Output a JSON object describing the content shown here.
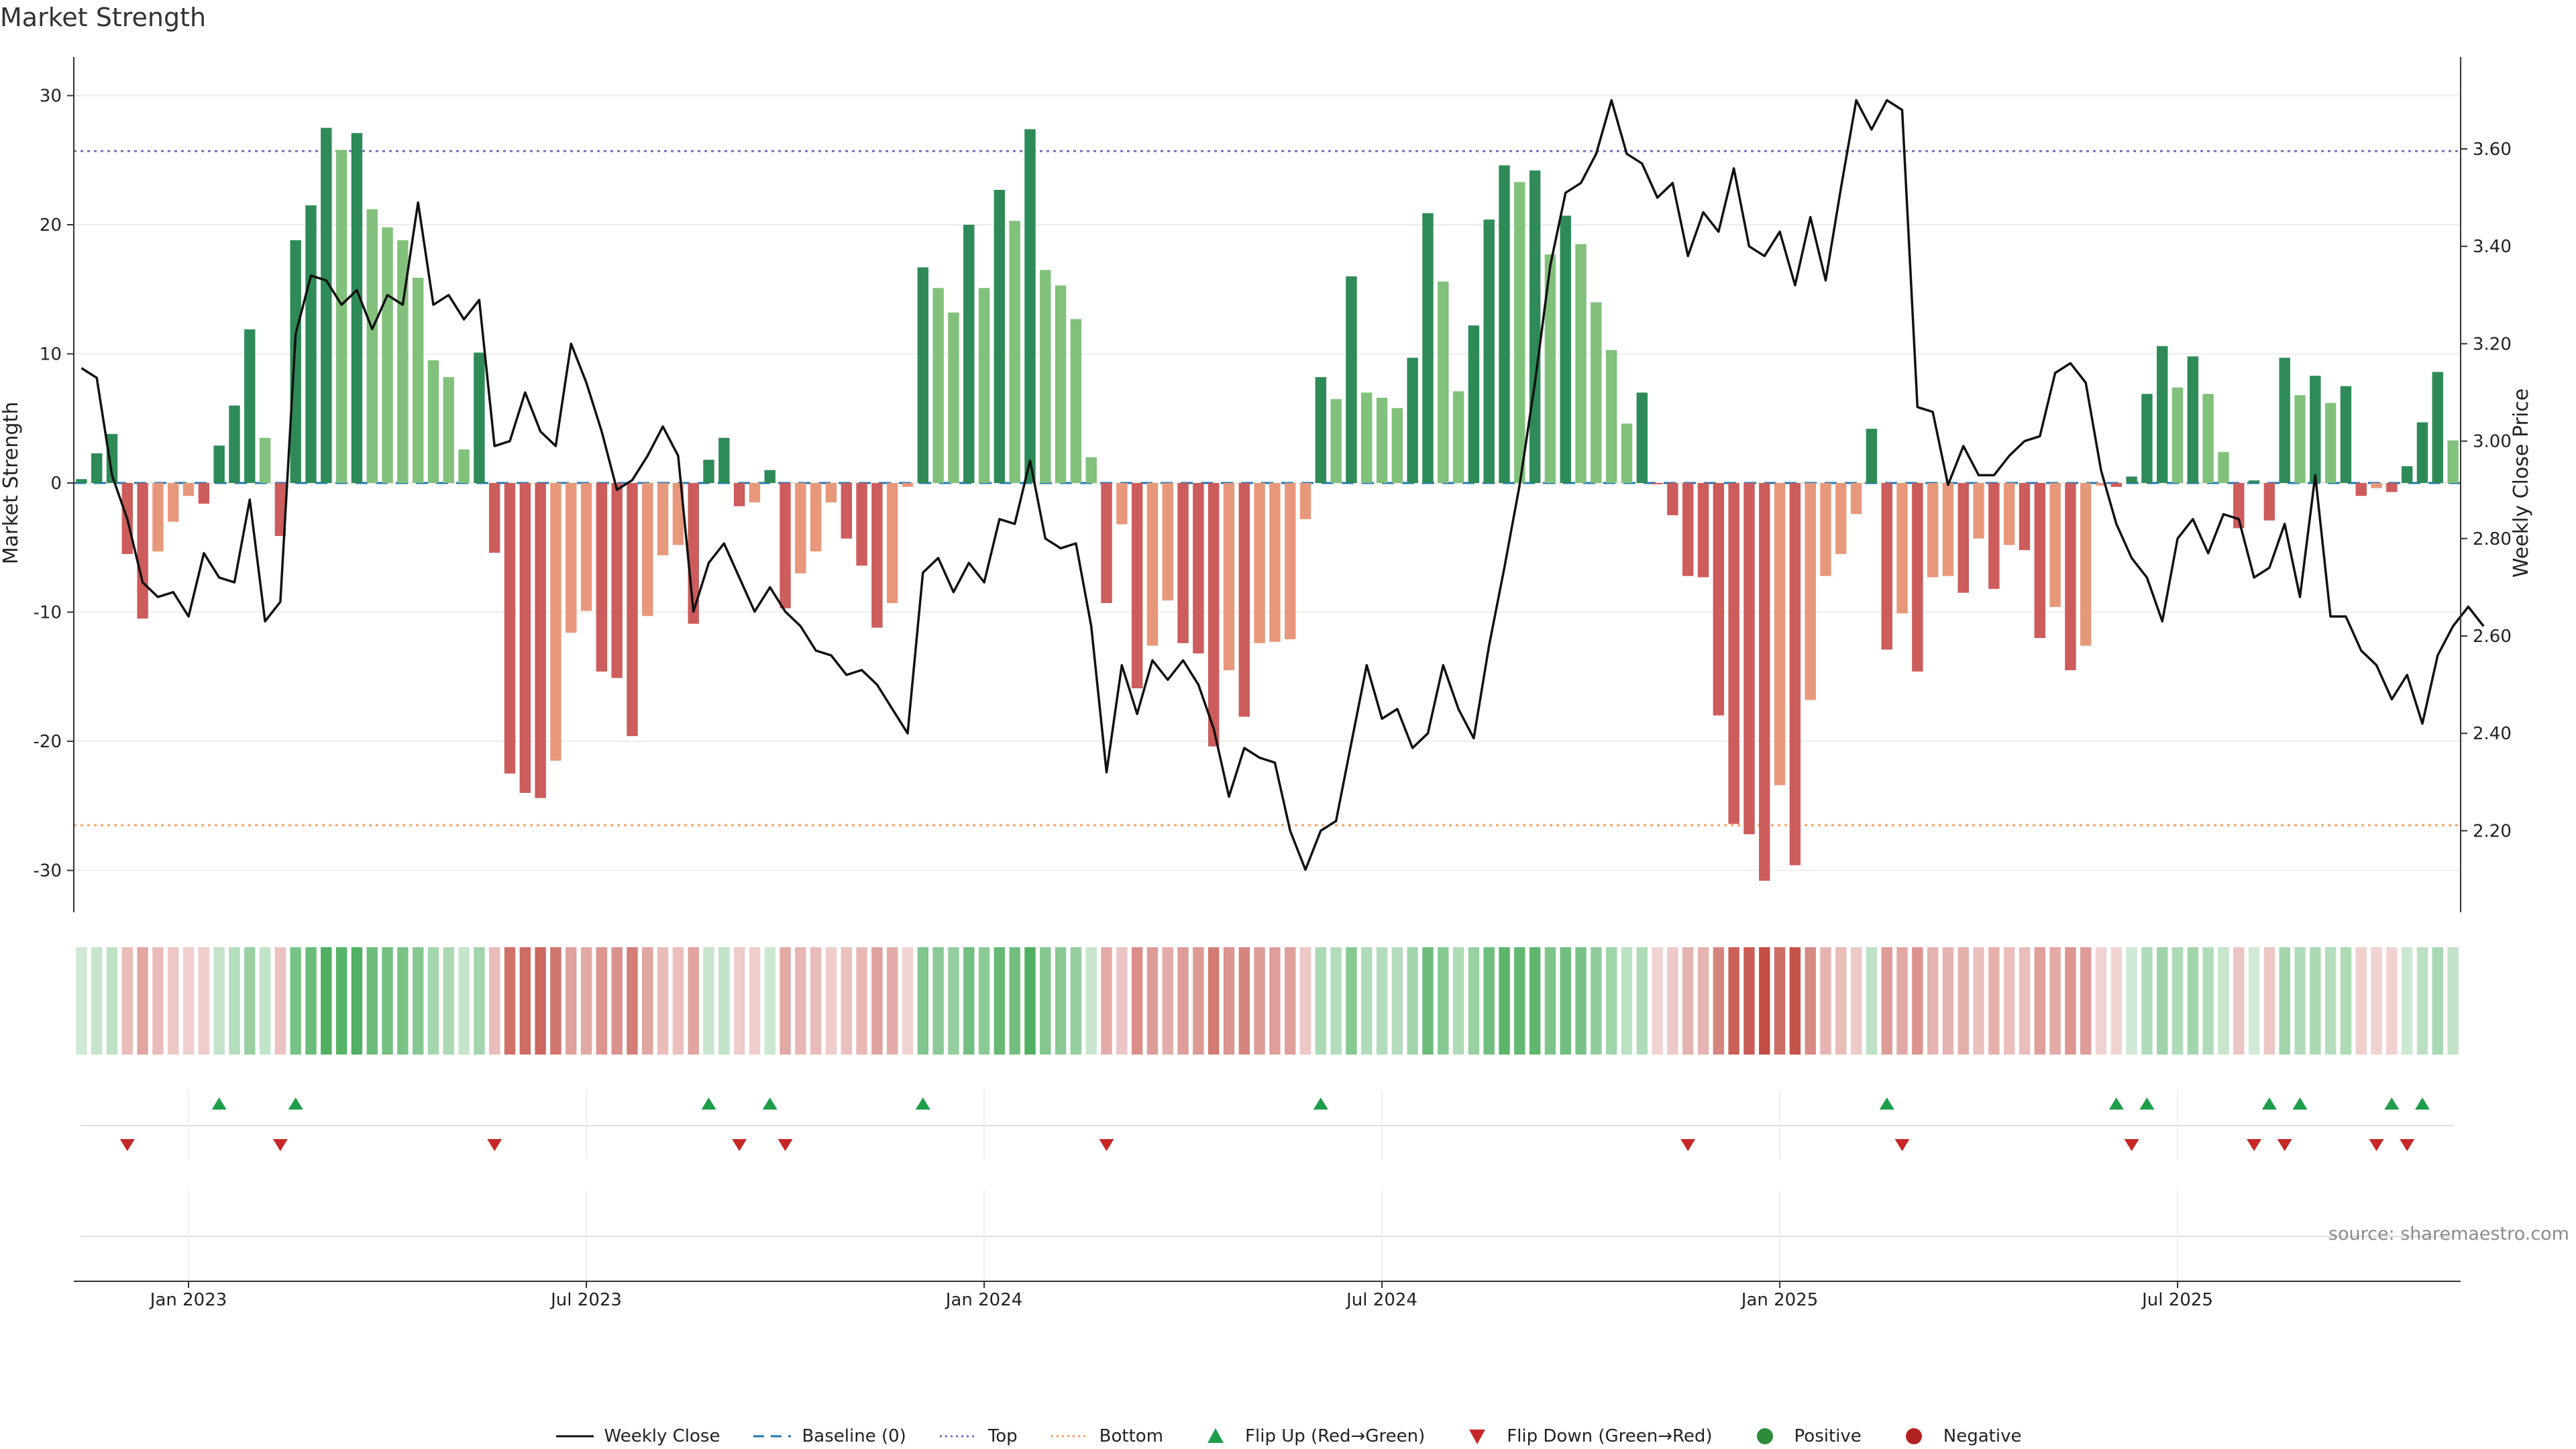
{
  "title": "Market Strength",
  "source_label": "source: sharemaestro.com",
  "colors": {
    "strong_green": "#2e8b57",
    "light_green": "#82c17c",
    "strong_red": "#cd5c5c",
    "light_red": "#e8987a",
    "baseline": "#1f77b4",
    "top": "#7b6bb8",
    "bottom": "#f4a261",
    "price_line": "#111111",
    "flip_up": "#1e9e4a",
    "flip_down": "#c62828"
  },
  "chart_data": {
    "type": "bar",
    "x_labels": [
      "Jan 2023",
      "Jul 2023",
      "Jan 2024",
      "Jul 2024",
      "Jan 2025",
      "Jul 2025"
    ],
    "x_label_week_index": [
      7,
      33,
      59,
      85,
      111,
      137
    ],
    "y_left": {
      "label": "Market Strength",
      "ticks": [
        30,
        20,
        10,
        0,
        -10,
        -20,
        -30
      ],
      "range": [
        -33,
        31.5
      ]
    },
    "y_right": {
      "label": "Weekly Close Price",
      "ticks": [
        "3.60",
        "3.40",
        "3.20",
        "3.00",
        "2.80",
        "2.60",
        "2.40",
        "2.20"
      ],
      "range": [
        2.08,
        3.8
      ]
    },
    "reference_lines": {
      "baseline": 0,
      "top": 25.7,
      "bottom": -26.5
    },
    "strength": [
      0.3,
      2.3,
      3.8,
      -5.5,
      -10.5,
      -5.3,
      -3.0,
      -1.0,
      -1.6,
      2.9,
      6.0,
      11.9,
      3.5,
      -4.1,
      18.8,
      21.5,
      27.5,
      25.8,
      27.1,
      21.2,
      19.8,
      18.8,
      15.9,
      9.5,
      8.2,
      2.6,
      10.1,
      -5.4,
      -22.5,
      -24.0,
      -24.4,
      -21.5,
      -11.6,
      -9.9,
      -14.6,
      -15.1,
      -19.6,
      -10.3,
      -5.6,
      -4.8,
      -10.9,
      1.8,
      3.5,
      -1.8,
      -1.5,
      1.0,
      -9.7,
      -7.0,
      -5.3,
      -1.5,
      -4.3,
      -6.4,
      -11.2,
      -9.3,
      -0.3,
      16.7,
      15.1,
      13.2,
      20.0,
      15.1,
      22.7,
      20.3,
      27.4,
      16.5,
      15.3,
      12.7,
      2.0,
      -9.3,
      -3.2,
      -15.9,
      -12.6,
      -9.1,
      -12.4,
      -13.2,
      -20.4,
      -14.5,
      -18.1,
      -12.4,
      -12.3,
      -12.1,
      -2.8,
      8.2,
      6.5,
      16.0,
      7.0,
      6.6,
      5.8,
      9.7,
      20.9,
      15.6,
      7.1,
      12.2,
      20.4,
      24.6,
      23.3,
      24.2,
      17.7,
      20.7,
      18.5,
      14.0,
      10.3,
      4.6,
      7.0,
      -0.1,
      -2.5,
      -7.2,
      -7.3,
      -18.0,
      -26.4,
      -27.2,
      -30.8,
      -23.4,
      -29.6,
      -16.8,
      -7.2,
      -5.5,
      -2.4,
      4.2,
      -12.9,
      -10.1,
      -14.6,
      -7.3,
      -7.2,
      -8.5,
      -4.3,
      -8.2,
      -4.8,
      -5.2,
      -12.0,
      -9.6,
      -14.5,
      -12.6,
      -0.2,
      -0.3,
      0.5,
      6.9,
      10.6,
      7.4,
      9.8,
      6.9,
      2.4,
      -3.5,
      0.2,
      -2.9,
      9.7,
      6.8,
      8.3,
      6.2,
      7.5,
      -1.0,
      -0.4,
      -0.7,
      1.3,
      4.7,
      8.6,
      3.3
    ],
    "weekly_close": [
      3.15,
      3.13,
      2.93,
      2.84,
      2.71,
      2.68,
      2.69,
      2.64,
      2.77,
      2.72,
      2.71,
      2.88,
      2.63,
      2.67,
      3.22,
      3.34,
      3.33,
      3.28,
      3.31,
      3.23,
      3.3,
      3.28,
      3.49,
      3.28,
      3.3,
      3.25,
      3.29,
      2.99,
      3.0,
      3.1,
      3.02,
      2.99,
      3.2,
      3.12,
      3.02,
      2.9,
      2.92,
      2.97,
      3.03,
      2.97,
      2.65,
      2.75,
      2.79,
      2.72,
      2.65,
      2.7,
      2.65,
      2.62,
      2.57,
      2.56,
      2.52,
      2.53,
      2.5,
      2.45,
      2.4,
      2.73,
      2.76,
      2.69,
      2.75,
      2.71,
      2.84,
      2.83,
      2.96,
      2.8,
      2.78,
      2.79,
      2.62,
      2.32,
      2.54,
      2.44,
      2.55,
      2.51,
      2.55,
      2.5,
      2.41,
      2.27,
      2.37,
      2.35,
      2.34,
      2.2,
      2.12,
      2.2,
      2.22,
      2.38,
      2.54,
      2.43,
      2.45,
      2.37,
      2.4,
      2.54,
      2.45,
      2.39,
      2.58,
      2.74,
      2.91,
      3.12,
      3.36,
      3.51,
      3.53,
      3.59,
      3.7,
      3.59,
      3.57,
      3.5,
      3.53,
      3.38,
      3.47,
      3.43,
      3.56,
      3.4,
      3.38,
      3.43,
      3.32,
      3.46,
      3.33,
      3.52,
      3.7,
      3.64,
      3.7,
      3.68,
      3.07,
      3.06,
      2.91,
      2.99,
      2.93,
      2.93,
      2.97,
      3.0,
      3.01,
      3.14,
      3.16,
      3.12,
      2.94,
      2.83,
      2.76,
      2.72,
      2.63,
      2.8,
      2.84,
      2.77,
      2.85,
      2.84,
      2.72,
      2.74,
      2.83,
      2.68,
      2.93,
      2.64,
      2.64,
      2.57,
      2.54,
      2.47,
      2.52,
      2.42,
      2.56,
      2.62,
      2.66,
      2.62
    ],
    "flip_up_weeks": [
      9,
      14,
      41,
      45,
      55,
      81,
      118,
      133,
      135,
      143,
      145,
      151,
      153
    ],
    "flip_down_weeks": [
      3,
      13,
      27,
      43,
      46,
      67,
      105,
      119,
      134,
      142,
      144,
      150,
      152
    ]
  },
  "legend": [
    {
      "key": "weekly_close",
      "label": "Weekly Close"
    },
    {
      "key": "baseline",
      "label": "Baseline (0)"
    },
    {
      "key": "top",
      "label": "Top"
    },
    {
      "key": "bottom",
      "label": "Bottom"
    },
    {
      "key": "flip_up",
      "label": "Flip Up (Red→Green)"
    },
    {
      "key": "flip_down",
      "label": "Flip Down (Green→Red)"
    },
    {
      "key": "positive",
      "label": "Positive"
    },
    {
      "key": "negative",
      "label": "Negative"
    }
  ]
}
